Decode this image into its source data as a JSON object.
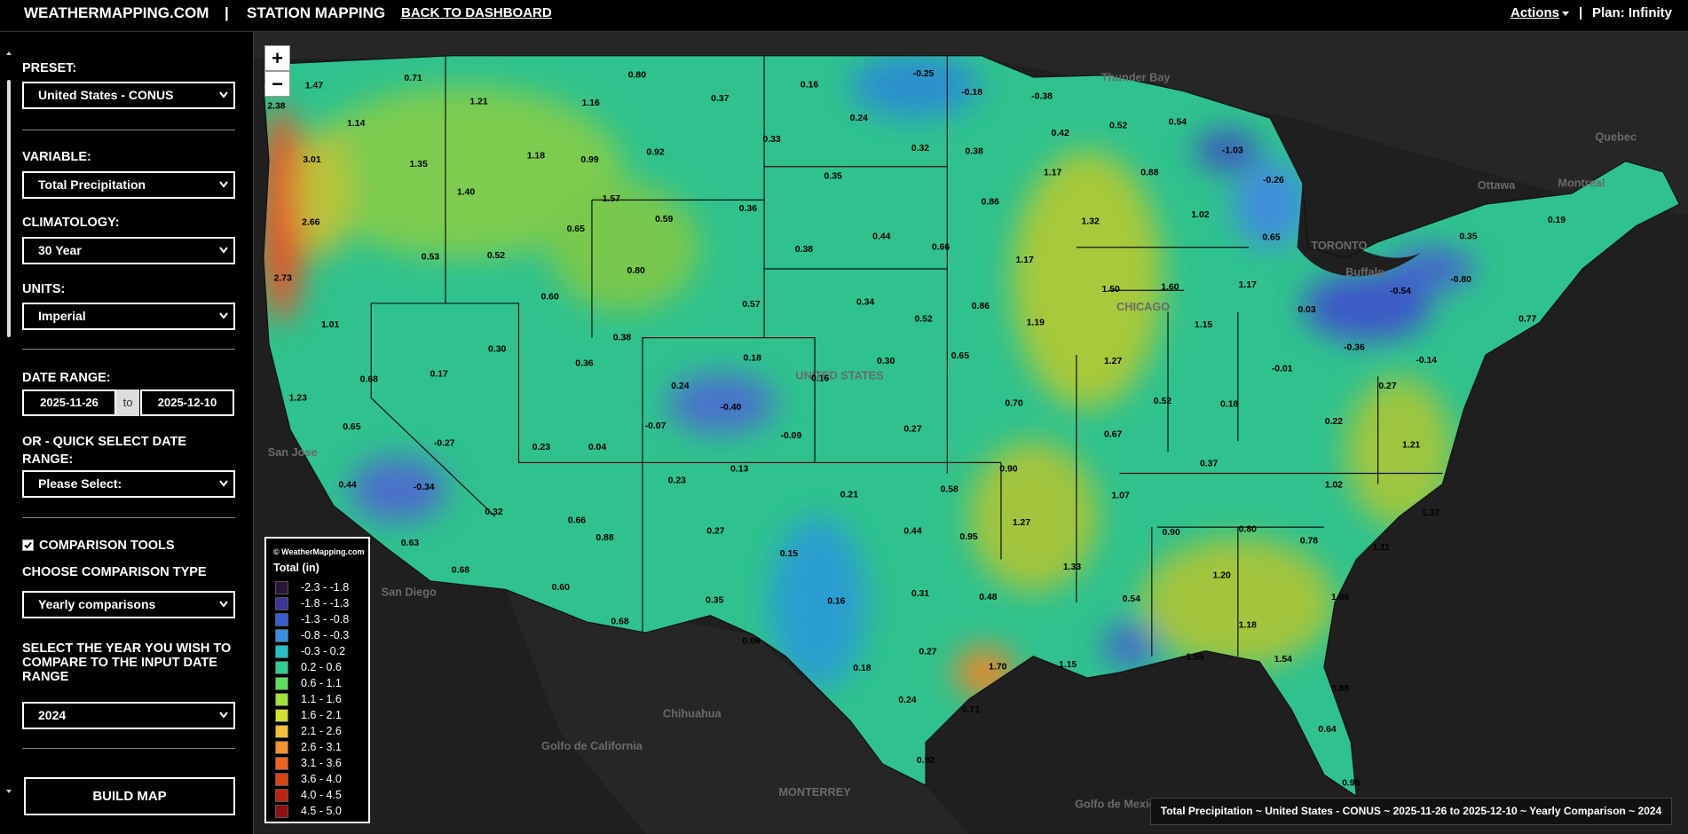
{
  "header": {
    "brand": "WEATHERMAPPING.COM",
    "separator": "|",
    "section": "STATION MAPPING",
    "back_link": "BACK TO DASHBOARD",
    "actions": "Actions",
    "plan_separator": "|",
    "plan": "Plan: Infinity"
  },
  "sidebar": {
    "preset": {
      "label": "PRESET:",
      "value": "United States - CONUS"
    },
    "variable": {
      "label": "VARIABLE:",
      "value": "Total Precipitation"
    },
    "climatology": {
      "label": "CLIMATOLOGY:",
      "value": "30 Year"
    },
    "units": {
      "label": "UNITS:",
      "value": "Imperial"
    },
    "date_range": {
      "label": "DATE RANGE:",
      "start": "2025-11-26",
      "to": "to",
      "end": "2025-12-10"
    },
    "quick_select": {
      "label": "OR - QUICK SELECT DATE RANGE:",
      "value": "Please Select:"
    },
    "comparison_tools": {
      "label": "COMPARISON TOOLS",
      "checked": true
    },
    "comparison_type": {
      "label": "CHOOSE COMPARISON TYPE",
      "value": "Yearly comparisons"
    },
    "compare_year": {
      "label": "SELECT THE YEAR YOU WISH TO COMPARE TO THE INPUT DATE RANGE",
      "value": "2024"
    },
    "build_button": "BUILD MAP"
  },
  "map": {
    "zoom_in": "+",
    "zoom_out": "−",
    "legend": {
      "credit": "© WeatherMapping.com",
      "title": "Total (in)",
      "items": [
        {
          "label": "-2.3 - -1.8",
          "color": "#2b1838"
        },
        {
          "label": "-1.8 - -1.3",
          "color": "#3b3596"
        },
        {
          "label": "-1.3 - -0.8",
          "color": "#3b5bcf"
        },
        {
          "label": "-0.8 - -0.3",
          "color": "#3a8fe0"
        },
        {
          "label": "-0.3 - 0.2",
          "color": "#22c1c4"
        },
        {
          "label": "0.2 - 0.6",
          "color": "#2fce8e"
        },
        {
          "label": "0.6 - 1.1",
          "color": "#5fdd5f"
        },
        {
          "label": "1.1 - 1.6",
          "color": "#a2e23c"
        },
        {
          "label": "1.6 - 2.1",
          "color": "#d2e12e"
        },
        {
          "label": "2.1 - 2.6",
          "color": "#f1c133"
        },
        {
          "label": "2.6 - 3.1",
          "color": "#f19331"
        },
        {
          "label": "3.1 - 3.6",
          "color": "#ef6220"
        },
        {
          "label": "3.6 - 4.0",
          "color": "#dc4113"
        },
        {
          "label": "4.0 - 4.5",
          "color": "#bd2310"
        },
        {
          "label": "4.5 - 5.0",
          "color": "#8e1010"
        }
      ]
    },
    "caption": "Total Precipitation ~ United States - CONUS ~ 2025-11-26 to 2025-12-10 ~ Yearly Comparison ~ 2024",
    "place_labels": [
      "Thunder Bay",
      "Quebec",
      "Ottawa",
      "Montreal",
      "TORONTO",
      "Buffalo",
      "CHICAGO",
      "San Jose",
      "San Diego",
      "Chihuahua",
      "Golfo de California",
      "MONTERREY",
      "Golfo de Mexico",
      "UNITED STATES"
    ],
    "station_values": [
      "0.71",
      "0.80",
      "0.37",
      "0.16",
      "-0.25",
      "-0.18",
      "-0.38",
      "1.47",
      "2.38",
      "1.21",
      "1.16",
      "0.24",
      "0.32",
      "0.38",
      "0.42",
      "0.52",
      "0.54",
      "-1.03",
      "1.14",
      "0.33",
      "3.01",
      "1.35",
      "1.18",
      "0.99",
      "0.92",
      "0.35",
      "1.17",
      "0.88",
      "-0.26",
      "1.40",
      "1.57",
      "0.36",
      "0.86",
      "1.32",
      "1.02",
      "2.66",
      "0.65",
      "0.59",
      "0.44",
      "0.66",
      "0.65",
      "0.35",
      "0.19",
      "0.53",
      "0.52",
      "0.80",
      "0.38",
      "1.17",
      "2.73",
      "0.60",
      "0.34",
      "0.52",
      "1.50",
      "1.60",
      "1.17",
      "-0.54",
      "-0.80",
      "0.57",
      "0.86",
      "1.19",
      "0.03",
      "0.77",
      "1.01",
      "0.38",
      "0.18",
      "0.30",
      "0.65",
      "1.15",
      "0.30",
      "0.36",
      "1.27",
      "-0.36",
      "-0.14",
      "0.17",
      "0.68",
      "0.16",
      "0.24",
      "-0.01",
      "0.27",
      "1.23",
      "-0.40",
      "0.70",
      "0.52",
      "0.18",
      "0.65",
      "-0.07",
      "-0.09",
      "0.27",
      "0.67",
      "0.22",
      "-0.27",
      "0.23",
      "0.04",
      "1.21",
      "0.37",
      "0.13",
      "0.90",
      "0.23",
      "1.02",
      "0.44",
      "-0.34",
      "0.21",
      "0.58",
      "1.07",
      "0.32",
      "1.37",
      "0.66",
      "0.44",
      "0.95",
      "1.27",
      "0.90",
      "0.80",
      "0.27",
      "0.88",
      "0.78",
      "0.63",
      "1.11",
      "0.15",
      "0.68",
      "1.33",
      "1.20",
      "0.60",
      "0.31",
      "0.48",
      "0.54",
      "1.06",
      "0.16",
      "0.35",
      "0.68",
      "1.18",
      "0.08",
      "0.27",
      "1.55",
      "1.54",
      "1.70",
      "1.15",
      "0.18",
      "0.24",
      "0.88",
      "0.71",
      "0.64",
      "0.92",
      "0.98"
    ]
  }
}
